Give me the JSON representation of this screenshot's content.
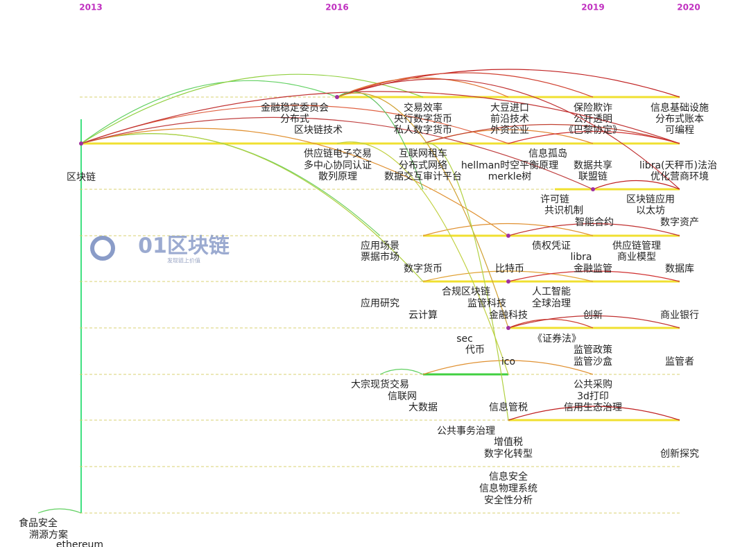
{
  "years": [
    "2013",
    "2016",
    "2019",
    "2020"
  ],
  "keywords": [
    "区块链",
    "金融稳定委员会",
    "分布式",
    "区块链技术",
    "交易效率",
    "央行数字货币",
    "私人数字货币",
    "大豆进口",
    "前沿技术",
    "外资企业",
    "保险欺诈",
    "公开透明",
    "《巴黎协定》",
    "信息基础设施",
    "分布式账本",
    "可编程",
    "供应链电子交易",
    "多中心协同认证",
    "散列原理",
    "互联网租车",
    "分布式网络",
    "数据交互审计平台",
    "hellman时空平衡原理",
    "merkle树",
    "信息孤岛",
    "数据共享",
    "联盟链",
    "libra(天秤币)法治",
    "优化营商环境",
    "许可链",
    "共识机制",
    "区块链应用",
    "以太坊",
    "智能合约",
    "数字资产",
    "应用场景",
    "票据市场",
    "债权凭证",
    "供应链管理",
    "libra",
    "商业模型",
    "数字货币",
    "比特币",
    "金融监管",
    "数据库",
    "合规区块链",
    "人工智能",
    "应用研究",
    "监管科技",
    "全球治理",
    "云计算",
    "金融科技",
    "创新",
    "商业银行",
    "sec",
    "《证券法》",
    "代币",
    "监管政策",
    "ico",
    "监管沙盒",
    "监管者",
    "大宗现货交易",
    "公共采购",
    "信联网",
    "3d打印",
    "大数据",
    "信息管税",
    "信用生态治理",
    "公共事务治理",
    "增值税",
    "数字化转型",
    "创新探究",
    "信息安全",
    "信息物理系统",
    "安全性分析",
    "食品安全",
    "溯源方案",
    "ethereum"
  ],
  "watermark": {
    "name": "01区块链",
    "slogan": "发现链上价值"
  }
}
